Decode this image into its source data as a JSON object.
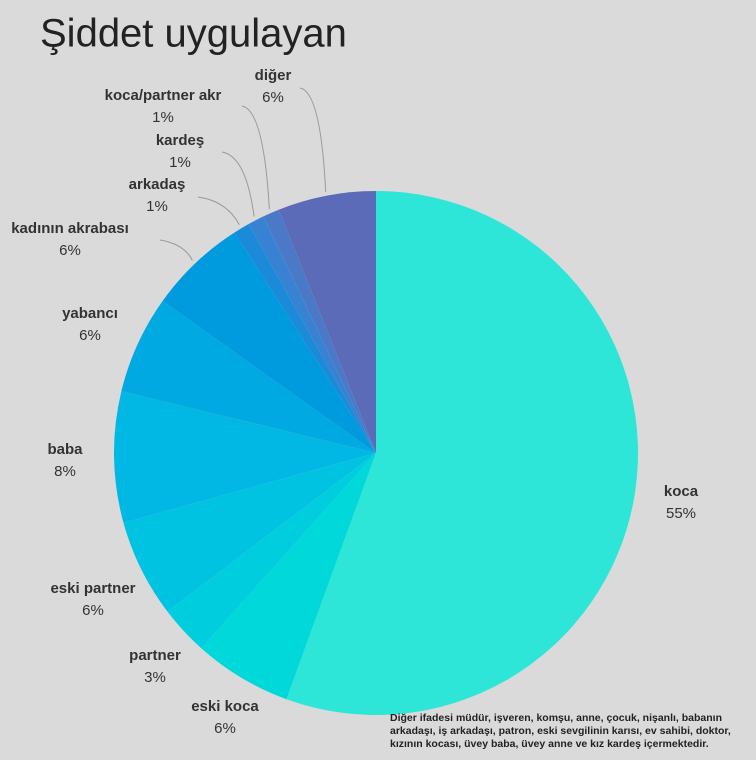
{
  "chart_data": {
    "type": "pie",
    "title": "Şiddet uygulayan",
    "categories": [
      "koca",
      "eski koca",
      "partner",
      "eski partner",
      "baba",
      "yabancı",
      "kadının akrabası",
      "arkadaş",
      "kardeş",
      "koca/partner akr",
      "diğer"
    ],
    "values": [
      55,
      6,
      3,
      6,
      8,
      6,
      6,
      1,
      1,
      1,
      6
    ],
    "value_labels": [
      "55%",
      "6%",
      "3%",
      "6%",
      "8%",
      "6%",
      "6%",
      "1%",
      "1%",
      "1%",
      "6%"
    ],
    "colors": [
      "#2ee6d8",
      "#00d8da",
      "#00cdde",
      "#00c3e2",
      "#00b8e3",
      "#00a9e2",
      "#009ade",
      "#1a8ad9",
      "#3782d2",
      "#4a79c8",
      "#5b6bb8"
    ],
    "note": "Diğer ifadesi müdür, işveren, komşu, anne, çocuk, nişanlı, babanın arkadaşı, iş arkadaşı, patron, eski sevgilinin karısı, ev sahibi, doktor, kızının kocası, üvey baba, üvey anne ve kız kardeş içermektedir."
  }
}
